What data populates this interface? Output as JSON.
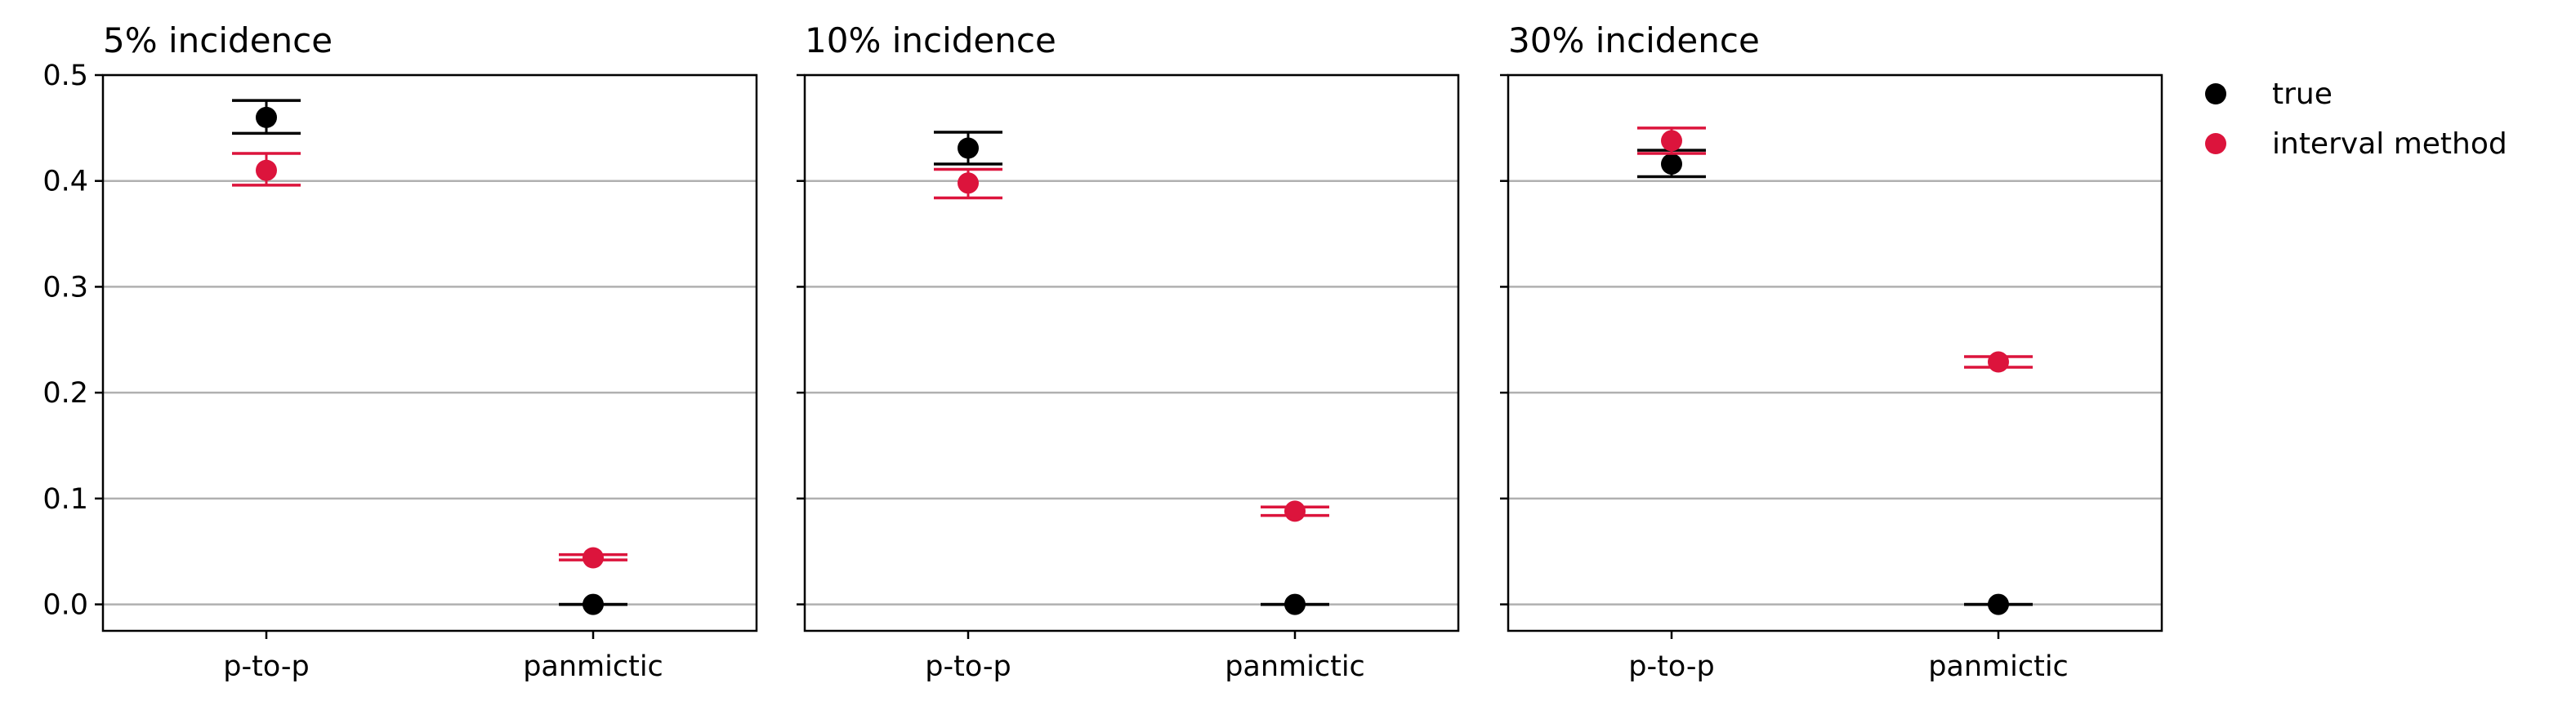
{
  "colors": {
    "true": "#000000",
    "interval": "#dc143c",
    "grid": "#b0b0b0",
    "axes": "#000000"
  },
  "legend": {
    "placement": "outside-right",
    "entries": [
      {
        "label": "true",
        "color": "#000000"
      },
      {
        "label": "interval method",
        "color": "#dc143c"
      }
    ]
  },
  "chart_data": [
    {
      "type": "scatter",
      "title": "5% incidence",
      "categories": [
        "p-to-p",
        "panmictic"
      ],
      "ylim": [
        -0.025,
        0.5
      ],
      "yticks": [
        "0.0",
        "0.1",
        "0.2",
        "0.3",
        "0.4",
        "0.5"
      ],
      "grid": "y",
      "series": [
        {
          "name": "true",
          "color": "#000000",
          "values": [
            0.46,
            0.0
          ],
          "lower": [
            0.445,
            0.0
          ],
          "upper": [
            0.476,
            0.0
          ]
        },
        {
          "name": "interval method",
          "color": "#dc143c",
          "values": [
            0.41,
            0.044
          ],
          "lower": [
            0.396,
            0.042
          ],
          "upper": [
            0.426,
            0.047
          ]
        }
      ]
    },
    {
      "type": "scatter",
      "title": "10% incidence",
      "categories": [
        "p-to-p",
        "panmictic"
      ],
      "ylim": [
        -0.025,
        0.5
      ],
      "yticks": [
        "",
        "",
        "",
        "",
        "",
        ""
      ],
      "grid": "y",
      "series": [
        {
          "name": "true",
          "color": "#000000",
          "values": [
            0.431,
            0.0
          ],
          "lower": [
            0.416,
            0.0
          ],
          "upper": [
            0.446,
            0.0
          ]
        },
        {
          "name": "interval method",
          "color": "#dc143c",
          "values": [
            0.398,
            0.088
          ],
          "lower": [
            0.384,
            0.084
          ],
          "upper": [
            0.411,
            0.092
          ]
        }
      ]
    },
    {
      "type": "scatter",
      "title": "30% incidence",
      "categories": [
        "p-to-p",
        "panmictic"
      ],
      "ylim": [
        -0.025,
        0.5
      ],
      "yticks": [
        "",
        "",
        "",
        "",
        "",
        ""
      ],
      "grid": "y",
      "series": [
        {
          "name": "true",
          "color": "#000000",
          "values": [
            0.416,
            0.0
          ],
          "lower": [
            0.404,
            0.0
          ],
          "upper": [
            0.429,
            0.0
          ]
        },
        {
          "name": "interval method",
          "color": "#dc143c",
          "values": [
            0.438,
            0.229
          ],
          "lower": [
            0.426,
            0.224
          ],
          "upper": [
            0.45,
            0.234
          ]
        }
      ]
    }
  ]
}
